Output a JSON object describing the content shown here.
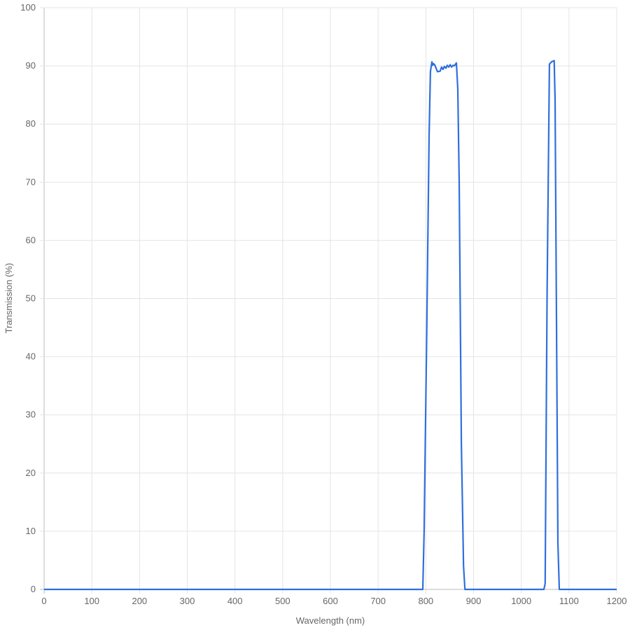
{
  "chart_data": {
    "type": "line",
    "xlabel": "Wavelength (nm)",
    "ylabel": "Transmission (%)",
    "xlim": [
      0,
      1200
    ],
    "ylim": [
      0,
      100
    ],
    "xticks": [
      "0",
      "100",
      "200",
      "300",
      "400",
      "500",
      "600",
      "700",
      "800",
      "900",
      "1000",
      "1100",
      "1200"
    ],
    "yticks": [
      "0",
      "10",
      "20",
      "30",
      "40",
      "50",
      "60",
      "70",
      "80",
      "90",
      "100"
    ],
    "grid": true,
    "line_color": "#2f6fde",
    "series": [
      {
        "x": [
          0,
          793.6,
          796.5,
          802,
          806.8,
          809.7,
          812.7,
          814.5,
          815.6,
          818.5,
          824.4,
          830,
          833,
          836,
          839,
          842,
          845,
          848,
          851,
          854,
          857,
          859.7,
          864,
          867,
          870,
          874.5,
          879,
          882,
          1047.4,
          1050,
          1054,
          1059,
          1063.5,
          1069,
          1070.9,
          1076.7,
          1079.7,
          1200
        ],
        "y": [
          0,
          0,
          10,
          45,
          78,
          89,
          90.7,
          90.1,
          90.4,
          90.2,
          89,
          89.1,
          89.8,
          89.4,
          89.9,
          89.6,
          90.1,
          89.8,
          90.2,
          89.8,
          90.1,
          90,
          90.5,
          86,
          70,
          25,
          4,
          0,
          0,
          1,
          50,
          90.3,
          90.7,
          90.9,
          84,
          8,
          0,
          0
        ]
      }
    ]
  }
}
